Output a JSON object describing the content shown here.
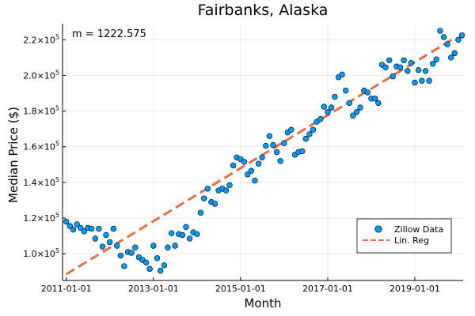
{
  "chart_data": {
    "type": "scatter",
    "title": "Fairbanks, Alaska",
    "xlabel": "Month",
    "ylabel": "Median Price ($)",
    "annotation": "m = 1222.575",
    "xlim": [
      "2010-12-01",
      "2020-02-10"
    ],
    "ylim": [
      85000,
      229000
    ],
    "x_ticks": [
      "2011-01-01",
      "2013-01-01",
      "2015-01-01",
      "2017-01-01",
      "2019-01-01"
    ],
    "y_ticks": [
      {
        "value": 100000,
        "mantissa": "1.0×10",
        "exp": "5"
      },
      {
        "value": 120000,
        "mantissa": "1.2×10",
        "exp": "5"
      },
      {
        "value": 140000,
        "mantissa": "1.4×10",
        "exp": "5"
      },
      {
        "value": 160000,
        "mantissa": "1.6×10",
        "exp": "5"
      },
      {
        "value": 180000,
        "mantissa": "1.8×10",
        "exp": "5"
      },
      {
        "value": 200000,
        "mantissa": "2.0×10",
        "exp": "5"
      },
      {
        "value": 220000,
        "mantissa": "2.2×10",
        "exp": "5"
      }
    ],
    "grid": true,
    "legend_position": "bottom-right",
    "colors": {
      "scatter": "#009AFA",
      "regression": "#E26F46"
    },
    "series": [
      {
        "name": "Zillow Data",
        "type": "scatter",
        "x": [
          "2011-01-01",
          "2011-02-01",
          "2011-03-01",
          "2011-04-01",
          "2011-05-01",
          "2011-06-01",
          "2011-07-01",
          "2011-08-01",
          "2011-09-01",
          "2011-10-01",
          "2011-11-01",
          "2011-12-01",
          "2012-01-01",
          "2012-02-01",
          "2012-03-01",
          "2012-04-01",
          "2012-05-01",
          "2012-06-01",
          "2012-07-01",
          "2012-08-01",
          "2012-09-01",
          "2012-10-01",
          "2012-11-01",
          "2012-12-01",
          "2013-01-01",
          "2013-02-01",
          "2013-03-01",
          "2013-04-01",
          "2013-05-01",
          "2013-06-01",
          "2013-07-01",
          "2013-08-01",
          "2013-09-01",
          "2013-10-01",
          "2013-11-01",
          "2013-12-01",
          "2014-01-01",
          "2014-02-01",
          "2014-03-01",
          "2014-04-01",
          "2014-05-01",
          "2014-06-01",
          "2014-07-01",
          "2014-08-01",
          "2014-09-01",
          "2014-10-01",
          "2014-11-01",
          "2014-12-01",
          "2015-01-01",
          "2015-02-01",
          "2015-03-01",
          "2015-04-01",
          "2015-05-01",
          "2015-06-01",
          "2015-07-01",
          "2015-08-01",
          "2015-09-01",
          "2015-10-01",
          "2015-11-01",
          "2015-12-01",
          "2016-01-01",
          "2016-02-01",
          "2016-03-01",
          "2016-04-01",
          "2016-05-01",
          "2016-06-01",
          "2016-07-01",
          "2016-08-01",
          "2016-09-01",
          "2016-10-01",
          "2016-11-01",
          "2016-12-01",
          "2017-01-01",
          "2017-02-01",
          "2017-03-01",
          "2017-04-01",
          "2017-05-01",
          "2017-06-01",
          "2017-07-01",
          "2017-08-01",
          "2017-09-01",
          "2017-10-01",
          "2017-11-01",
          "2017-12-01",
          "2018-01-01",
          "2018-02-01",
          "2018-03-01",
          "2018-04-01",
          "2018-05-01",
          "2018-06-01",
          "2018-07-01",
          "2018-08-01",
          "2018-09-01",
          "2018-10-01",
          "2018-11-01",
          "2018-12-01",
          "2019-01-01",
          "2019-02-01",
          "2019-03-01",
          "2019-04-01",
          "2019-05-01",
          "2019-06-01",
          "2019-07-01",
          "2019-08-01",
          "2019-09-01",
          "2019-10-01",
          "2019-11-01",
          "2019-12-01"
        ],
        "y": [
          118000,
          115500,
          113500,
          116500,
          114500,
          112500,
          114500,
          114000,
          108500,
          114000,
          104000,
          110500,
          106500,
          114000,
          104500,
          99000,
          93000,
          101000,
          100500,
          103500,
          98000,
          96500,
          95000,
          91500,
          104500,
          97500,
          90500,
          93500,
          103500,
          111500,
          104500,
          111000,
          110500,
          115000,
          108500,
          112000,
          111000,
          123000,
          131000,
          136500,
          129000,
          128000,
          135500,
          136500,
          135500,
          138500,
          149500,
          154000,
          153000,
          151500,
          144500,
          146500,
          141000,
          150500,
          154000,
          160500,
          166000,
          161000,
          157000,
          152000,
          162000,
          168000,
          169500,
          155500,
          157000,
          157500,
          164500,
          167000,
          169500,
          174000,
          175500,
          182500,
          179500,
          182000,
          188000,
          199000,
          200500,
          191500,
          184500,
          177500,
          179500,
          182000,
          191500,
          190500,
          187000,
          187000,
          184500,
          206000,
          204500,
          208500,
          199500,
          205000,
          204500,
          208500,
          202500,
          207000,
          196000,
          203000,
          197000,
          202500,
          197000,
          206500,
          209000,
          225000,
          221500,
          217500,
          210000,
          212500
        ]
      },
      {
        "name": "Lin. Reg",
        "type": "line",
        "style": "dashed",
        "x": [
          "2011-01-01",
          "2019-12-01"
        ],
        "y": [
          88500,
          221000
        ]
      }
    ]
  },
  "tail_points": [
    {
      "x": "2020-01-01",
      "y": 220000
    },
    {
      "x": "2020-02-01",
      "y": 222500
    }
  ]
}
